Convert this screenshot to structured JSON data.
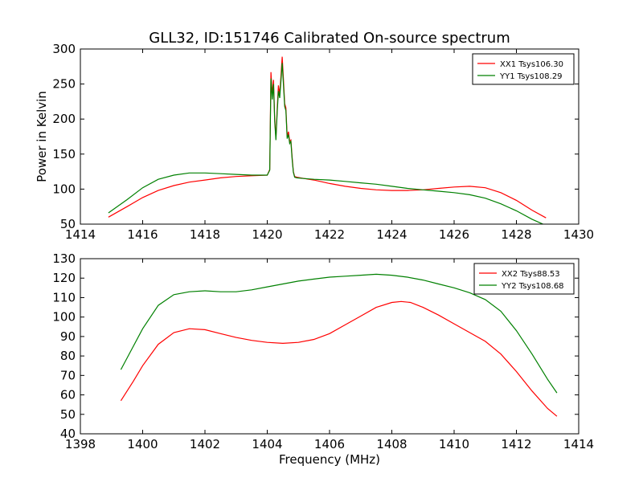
{
  "figure": {
    "title": "GLL32, ID:151746 Calibrated On-source spectrum",
    "xlabel": "Frequency (MHz)"
  },
  "colors": {
    "xx": "#ff0000",
    "yy": "#008000",
    "axis": "#000000",
    "background": "#ffffff"
  },
  "chart_data": [
    {
      "type": "line",
      "name": "top-panel",
      "title": "",
      "xlabel": "",
      "ylabel": "Power in Kelvin",
      "xlim": [
        1414,
        1430
      ],
      "ylim": [
        50,
        300
      ],
      "xticks": [
        1414,
        1416,
        1418,
        1420,
        1422,
        1424,
        1426,
        1428,
        1430
      ],
      "yticks": [
        50,
        100,
        150,
        200,
        250,
        300
      ],
      "grid": false,
      "legend_position": "top-right",
      "series": [
        {
          "name": "XX1 Tsys106.30",
          "color": "#ff0000",
          "x": [
            1414.9,
            1415.5,
            1416.0,
            1416.5,
            1417.0,
            1417.5,
            1418.0,
            1418.5,
            1419.0,
            1419.5,
            1420.0,
            1420.08,
            1420.12,
            1420.16,
            1420.2,
            1420.24,
            1420.28,
            1420.32,
            1420.36,
            1420.4,
            1420.44,
            1420.48,
            1420.52,
            1420.56,
            1420.6,
            1420.64,
            1420.68,
            1420.72,
            1420.76,
            1420.8,
            1420.84,
            1420.88,
            1420.95,
            1421.2,
            1421.5,
            1422.0,
            1422.5,
            1423.0,
            1423.5,
            1424.0,
            1424.5,
            1425.0,
            1425.5,
            1426.0,
            1426.5,
            1427.0,
            1427.5,
            1428.0,
            1428.5,
            1428.95
          ],
          "y": [
            60,
            75,
            88,
            98,
            105,
            110,
            113,
            116,
            118,
            119,
            120,
            128,
            267,
            235,
            256,
            200,
            173,
            215,
            248,
            235,
            262,
            289,
            258,
            222,
            216,
            175,
            182,
            168,
            170,
            145,
            125,
            118,
            117,
            115,
            113,
            108,
            104,
            101,
            99,
            98,
            98,
            99,
            101,
            103,
            104,
            102,
            95,
            84,
            70,
            59
          ]
        },
        {
          "name": "YY1 Tsys108.29",
          "color": "#008000",
          "x": [
            1414.9,
            1415.5,
            1416.0,
            1416.5,
            1417.0,
            1417.5,
            1418.0,
            1418.5,
            1419.0,
            1419.5,
            1420.0,
            1420.08,
            1420.12,
            1420.16,
            1420.2,
            1420.24,
            1420.28,
            1420.32,
            1420.36,
            1420.4,
            1420.44,
            1420.48,
            1420.52,
            1420.56,
            1420.6,
            1420.64,
            1420.68,
            1420.72,
            1420.76,
            1420.8,
            1420.84,
            1420.88,
            1420.95,
            1421.2,
            1421.5,
            1422.0,
            1422.5,
            1423.0,
            1423.5,
            1424.0,
            1424.5,
            1425.0,
            1425.5,
            1426.0,
            1426.5,
            1427.0,
            1427.5,
            1428.0,
            1428.5,
            1428.95
          ],
          "y": [
            66,
            85,
            102,
            114,
            120,
            123,
            123,
            122,
            121,
            120,
            120,
            127,
            258,
            228,
            250,
            196,
            170,
            210,
            240,
            230,
            255,
            280,
            250,
            218,
            212,
            172,
            178,
            165,
            168,
            142,
            124,
            117,
            116,
            115,
            114,
            113,
            111,
            109,
            107,
            104,
            101,
            99,
            97,
            95,
            92,
            87,
            79,
            69,
            57,
            48
          ]
        }
      ]
    },
    {
      "type": "line",
      "name": "bottom-panel",
      "title": "",
      "xlabel": "Frequency (MHz)",
      "ylabel": "",
      "xlim": [
        1398,
        1414
      ],
      "ylim": [
        40,
        130
      ],
      "xticks": [
        1398,
        1400,
        1402,
        1404,
        1406,
        1408,
        1410,
        1412,
        1414
      ],
      "yticks": [
        40,
        50,
        60,
        70,
        80,
        90,
        100,
        110,
        120,
        130
      ],
      "grid": false,
      "legend_position": "top-right",
      "series": [
        {
          "name": "XX2 Tsys88.53",
          "color": "#ff0000",
          "x": [
            1399.3,
            1399.7,
            1400.0,
            1400.5,
            1401.0,
            1401.5,
            1402.0,
            1402.5,
            1403.0,
            1403.5,
            1404.0,
            1404.5,
            1405.0,
            1405.5,
            1406.0,
            1406.5,
            1407.0,
            1407.5,
            1408.0,
            1408.3,
            1408.6,
            1409.0,
            1409.5,
            1410.0,
            1410.5,
            1411.0,
            1411.5,
            1412.0,
            1412.5,
            1413.0,
            1413.3
          ],
          "y": [
            57,
            67,
            75,
            86,
            92,
            94,
            93.5,
            91.5,
            89.5,
            88,
            87,
            86.5,
            87,
            88.5,
            91.5,
            96,
            100.5,
            105,
            107.5,
            108,
            107.5,
            105,
            101,
            96.5,
            92,
            87.5,
            81,
            72,
            62,
            53,
            49
          ]
        },
        {
          "name": "YY2 Tsys108.68",
          "color": "#008000",
          "x": [
            1399.3,
            1399.7,
            1400.0,
            1400.5,
            1401.0,
            1401.5,
            1402.0,
            1402.5,
            1403.0,
            1403.5,
            1404.0,
            1404.5,
            1405.0,
            1405.5,
            1406.0,
            1406.5,
            1407.0,
            1407.5,
            1408.0,
            1408.5,
            1409.0,
            1409.5,
            1410.0,
            1410.5,
            1411.0,
            1411.5,
            1412.0,
            1412.5,
            1413.0,
            1413.3
          ],
          "y": [
            73,
            85,
            94,
            106,
            111.5,
            113,
            113.5,
            113,
            113,
            114,
            115.5,
            117,
            118.5,
            119.5,
            120.5,
            121,
            121.5,
            122,
            121.5,
            120.5,
            119,
            117,
            115,
            112.5,
            109,
            103,
            93,
            81,
            68,
            61
          ]
        }
      ]
    }
  ]
}
